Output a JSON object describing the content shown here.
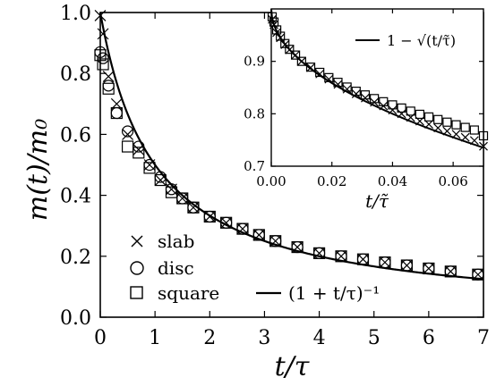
{
  "chart_data": [
    {
      "type": "scatter",
      "title": "",
      "xlabel": "t/τ",
      "ylabel": "m(t)/m₀",
      "xlim": [
        0,
        7
      ],
      "ylim": [
        0,
        1
      ],
      "xticks": [
        "0",
        "1",
        "2",
        "3",
        "4",
        "5",
        "6",
        "7"
      ],
      "yticks": [
        "0.0",
        "0.2",
        "0.4",
        "0.6",
        "0.8",
        "1.0"
      ],
      "grid": false,
      "legend_placement": "bottom",
      "series": [
        {
          "name": "slab",
          "marker": "cross",
          "x": [
            0.0,
            0.05,
            0.15,
            0.3,
            0.5,
            0.7,
            0.9,
            1.1,
            1.3,
            1.5,
            1.7,
            2.0,
            2.3,
            2.6,
            2.9,
            3.2,
            3.6,
            4.0,
            4.4,
            4.8,
            5.2,
            5.6,
            6.0,
            6.4,
            6.9
          ],
          "y": [
            0.99,
            0.93,
            0.79,
            0.7,
            0.6,
            0.55,
            0.5,
            0.45,
            0.42,
            0.39,
            0.36,
            0.33,
            0.31,
            0.29,
            0.27,
            0.25,
            0.23,
            0.21,
            0.2,
            0.19,
            0.18,
            0.17,
            0.16,
            0.15,
            0.14
          ]
        },
        {
          "name": "disc",
          "marker": "circle",
          "x": [
            0.0,
            0.05,
            0.15,
            0.3,
            0.5,
            0.7,
            0.9,
            1.1,
            1.3,
            1.5,
            1.7,
            2.0,
            2.3,
            2.6,
            2.9,
            3.2,
            3.6,
            4.0,
            4.4,
            4.8,
            5.2,
            5.6,
            6.0,
            6.4,
            6.9
          ],
          "y": [
            0.87,
            0.85,
            0.76,
            0.67,
            0.61,
            0.56,
            0.5,
            0.46,
            0.42,
            0.39,
            0.36,
            0.33,
            0.31,
            0.29,
            0.27,
            0.25,
            0.23,
            0.21,
            0.2,
            0.19,
            0.18,
            0.17,
            0.16,
            0.15,
            0.14
          ]
        },
        {
          "name": "square",
          "marker": "square",
          "x": [
            0.0,
            0.05,
            0.15,
            0.3,
            0.5,
            0.7,
            0.9,
            1.1,
            1.3,
            1.5,
            1.7,
            2.0,
            2.3,
            2.6,
            2.9,
            3.2,
            3.6,
            4.0,
            4.4,
            4.8,
            5.2,
            5.6,
            6.0,
            6.4,
            6.9
          ],
          "y": [
            0.86,
            0.83,
            0.75,
            0.67,
            0.56,
            0.54,
            0.49,
            0.45,
            0.41,
            0.39,
            0.36,
            0.33,
            0.31,
            0.29,
            0.27,
            0.25,
            0.23,
            0.21,
            0.2,
            0.19,
            0.18,
            0.17,
            0.16,
            0.15,
            0.14
          ]
        },
        {
          "name": "(1 + t/τ)⁻¹",
          "marker": "line",
          "formula": "1/(1+x)"
        }
      ]
    },
    {
      "type": "scatter",
      "title": "",
      "xlabel": "t/τ̃",
      "ylabel": "",
      "xlim": [
        0,
        0.07
      ],
      "ylim": [
        0.7,
        1.0
      ],
      "xticks": [
        "0.00",
        "0.02",
        "0.04",
        "0.06"
      ],
      "yticks": [
        "0.7",
        "0.8",
        "0.9"
      ],
      "grid": false,
      "legend_placement": "top-right",
      "series": [
        {
          "name": "slab",
          "marker": "cross",
          "x": [
            0.0003,
            0.0009,
            0.0018,
            0.003,
            0.0045,
            0.006,
            0.008,
            0.01,
            0.013,
            0.016,
            0.019,
            0.022,
            0.025,
            0.028,
            0.031,
            0.034,
            0.037,
            0.04,
            0.043,
            0.046,
            0.049,
            0.052,
            0.055,
            0.058,
            0.061,
            0.064,
            0.067,
            0.07
          ],
          "y": [
            0.98,
            0.97,
            0.955,
            0.945,
            0.932,
            0.922,
            0.912,
            0.9,
            0.888,
            0.876,
            0.866,
            0.856,
            0.847,
            0.838,
            0.83,
            0.822,
            0.815,
            0.807,
            0.8,
            0.793,
            0.786,
            0.78,
            0.773,
            0.767,
            0.761,
            0.755,
            0.749,
            0.738
          ]
        },
        {
          "name": "square",
          "marker": "square",
          "x": [
            0.0003,
            0.0009,
            0.0018,
            0.003,
            0.0045,
            0.006,
            0.008,
            0.01,
            0.013,
            0.016,
            0.019,
            0.022,
            0.025,
            0.028,
            0.031,
            0.034,
            0.037,
            0.04,
            0.043,
            0.046,
            0.049,
            0.052,
            0.055,
            0.058,
            0.061,
            0.064,
            0.067,
            0.07
          ],
          "y": [
            0.985,
            0.975,
            0.96,
            0.948,
            0.934,
            0.923,
            0.912,
            0.9,
            0.889,
            0.879,
            0.869,
            0.86,
            0.851,
            0.843,
            0.836,
            0.829,
            0.823,
            0.817,
            0.811,
            0.805,
            0.799,
            0.794,
            0.789,
            0.784,
            0.779,
            0.774,
            0.769,
            0.758
          ]
        },
        {
          "name": "1 − √(t/τ̃)",
          "marker": "line",
          "formula": "1-sqrt(x)"
        }
      ]
    }
  ]
}
